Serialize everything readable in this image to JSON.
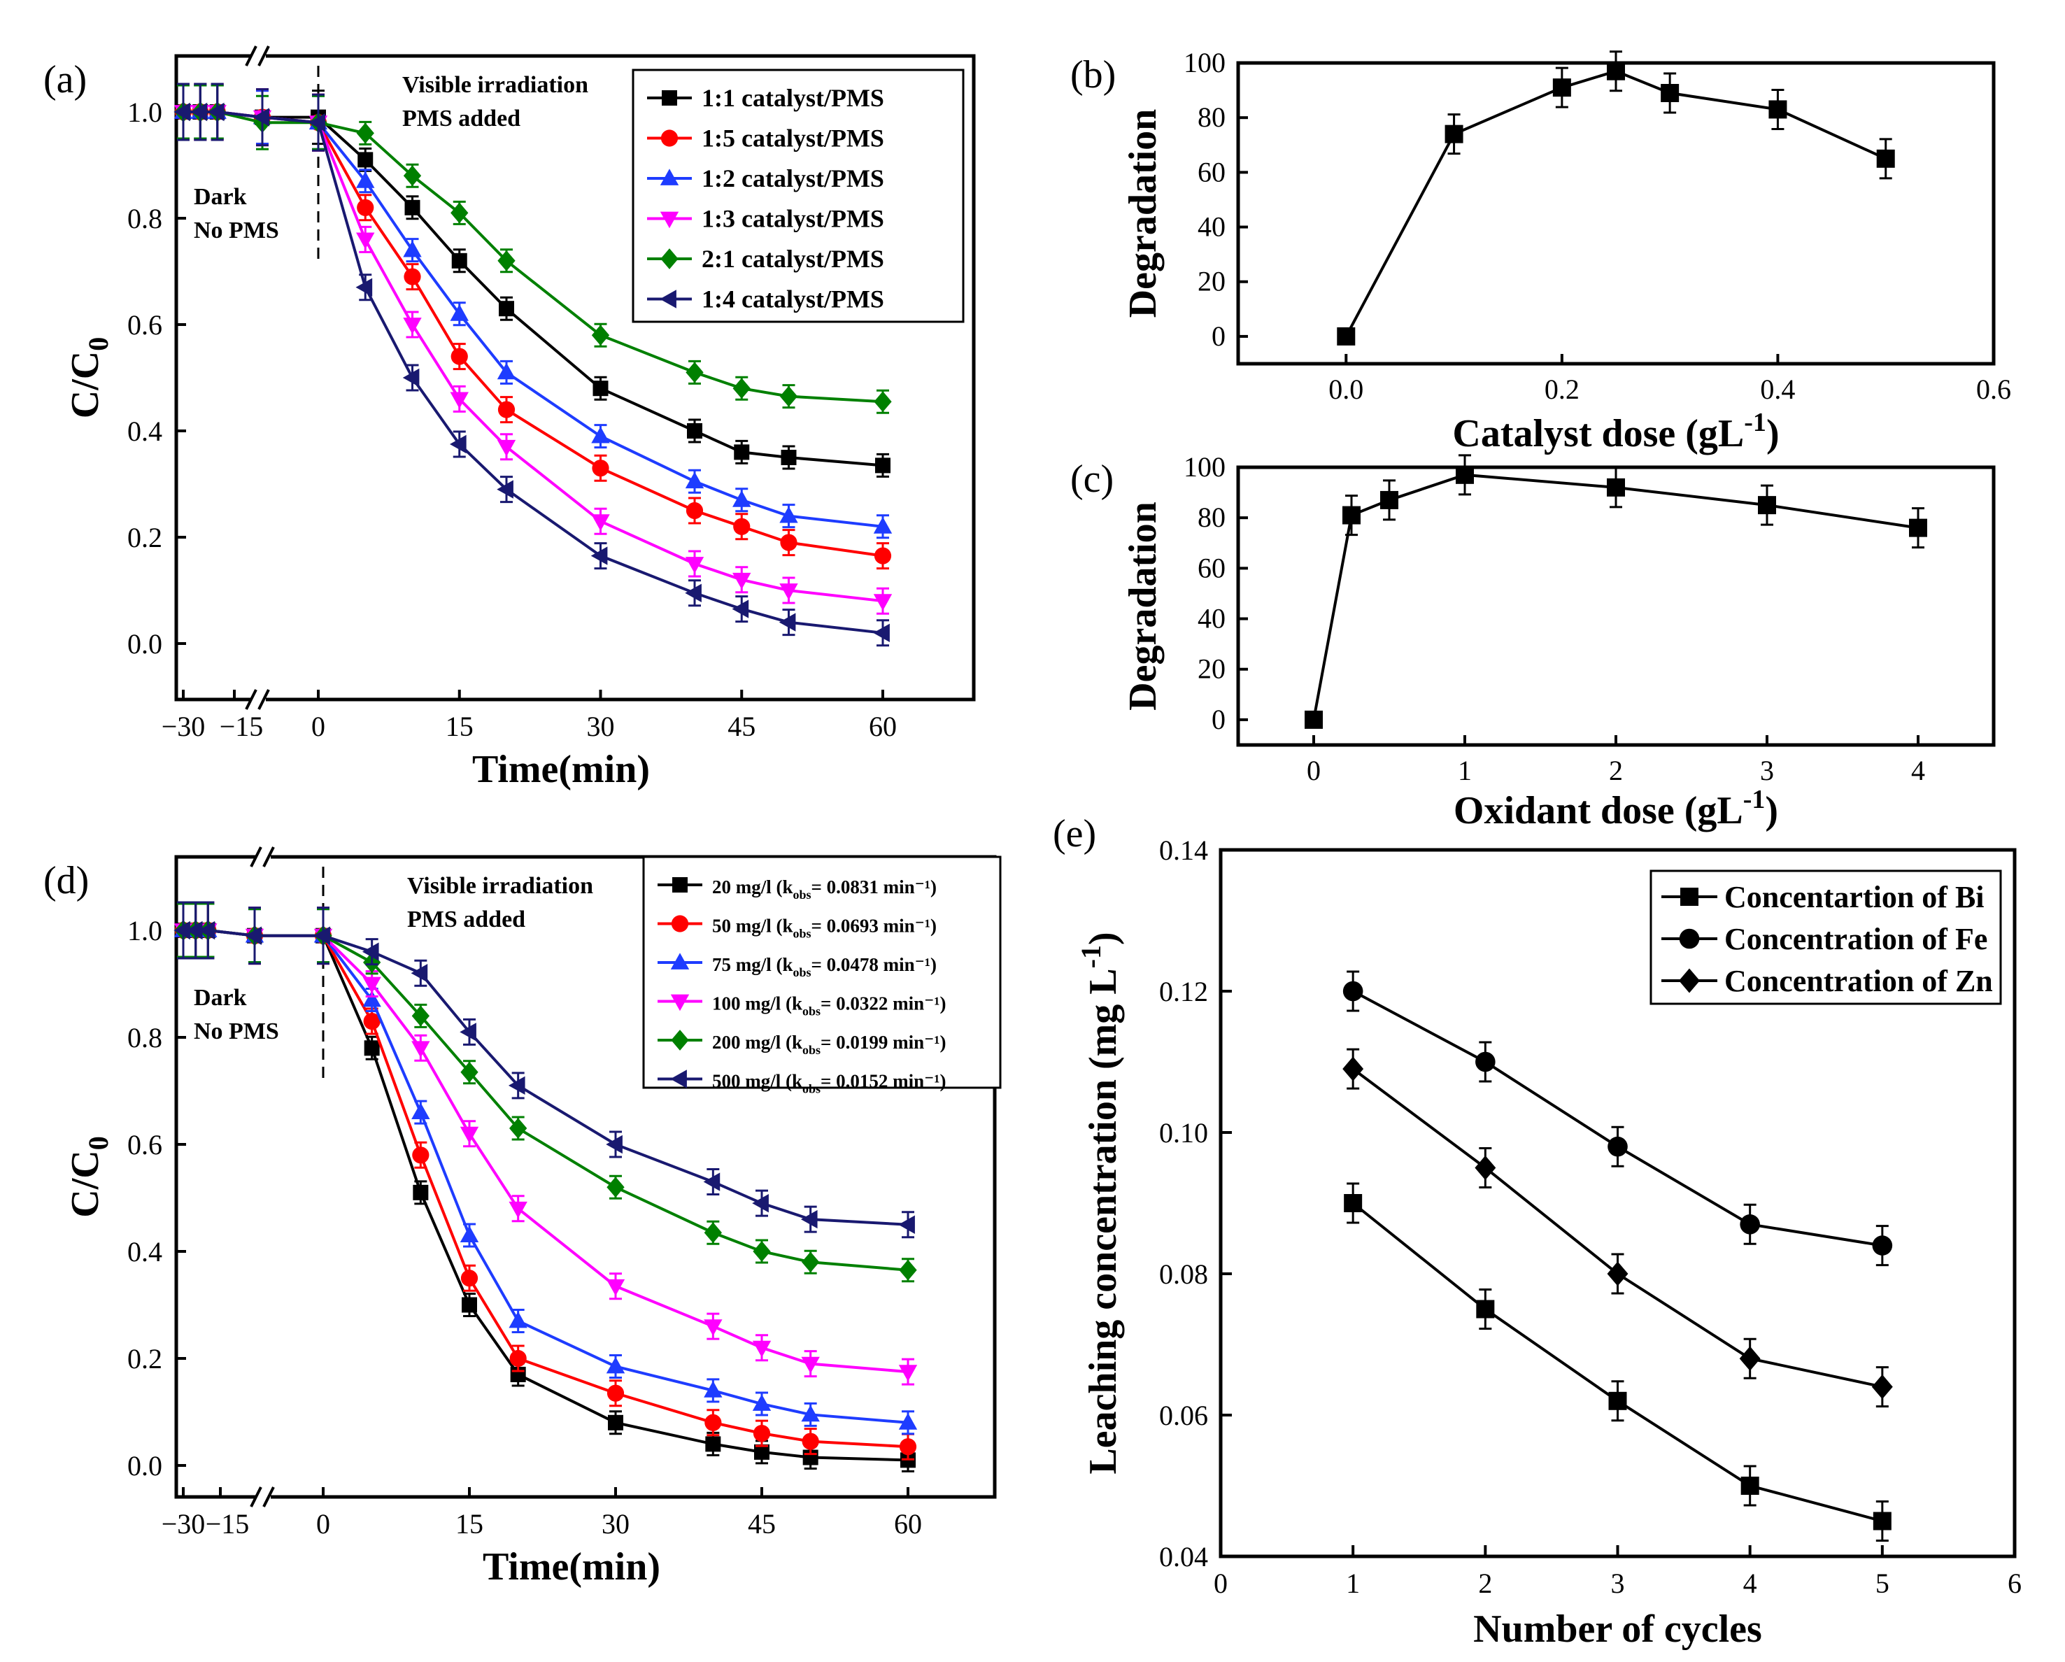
{
  "chart_data": [
    {
      "id": "a",
      "panel_label": "(a)",
      "type": "line",
      "xlabel": "Time(min)",
      "ylabel": "C/C",
      "ylabel_sub": "0",
      "ylim": [
        -0.1,
        1.1
      ],
      "xticks": [
        "-30",
        "-15",
        "0",
        "15",
        "30",
        "45",
        "60"
      ],
      "yticks": [
        "0.0",
        "0.2",
        "0.4",
        "0.6",
        "0.8",
        "1.0"
      ],
      "annotations": [
        "Visible irradiation",
        "PMS added",
        "Dark",
        "No PMS"
      ],
      "x": [
        -30,
        -25,
        -20,
        -10,
        0,
        5,
        10,
        15,
        20,
        30,
        40,
        45,
        50,
        60
      ],
      "series": [
        {
          "name": "1:1 catalyst/PMS",
          "color": "#000000",
          "marker": "square",
          "values": [
            1.0,
            1.0,
            1.0,
            0.99,
            0.99,
            0.91,
            0.82,
            0.72,
            0.63,
            0.48,
            0.4,
            0.36,
            0.35,
            0.335
          ]
        },
        {
          "name": "1:5 catalyst/PMS",
          "color": "#ff0000",
          "marker": "circle",
          "values": [
            1.0,
            1.0,
            1.0,
            0.99,
            0.98,
            0.82,
            0.69,
            0.54,
            0.44,
            0.33,
            0.25,
            0.22,
            0.19,
            0.165
          ]
        },
        {
          "name": "1:2 catalyst/PMS",
          "color": "#1e3cff",
          "marker": "triangle-up",
          "values": [
            1.0,
            1.0,
            1.0,
            0.99,
            0.98,
            0.87,
            0.74,
            0.62,
            0.51,
            0.39,
            0.305,
            0.27,
            0.24,
            0.22
          ]
        },
        {
          "name": "1:3 catalyst/PMS",
          "color": "#ff00ff",
          "marker": "triangle-down",
          "values": [
            1.0,
            1.0,
            1.0,
            0.99,
            0.98,
            0.76,
            0.6,
            0.46,
            0.37,
            0.23,
            0.15,
            0.12,
            0.1,
            0.08
          ]
        },
        {
          "name": "2:1 catalyst/PMS",
          "color": "#008000",
          "marker": "diamond",
          "values": [
            1.0,
            1.0,
            1.0,
            0.98,
            0.98,
            0.96,
            0.88,
            0.81,
            0.72,
            0.58,
            0.51,
            0.48,
            0.465,
            0.455
          ]
        },
        {
          "name": "1:4 catalyst/PMS",
          "color": "#191970",
          "marker": "triangle-left",
          "values": [
            1.0,
            1.0,
            1.0,
            0.99,
            0.98,
            0.67,
            0.5,
            0.375,
            0.29,
            0.165,
            0.095,
            0.065,
            0.04,
            0.02
          ]
        }
      ]
    },
    {
      "id": "b",
      "panel_label": "(b)",
      "type": "line",
      "xlabel": "Catalyst dose (gL",
      "xlabel_sup": "-1",
      "xlabel_end": ")",
      "ylabel": "Degradation",
      "xlim": [
        -0.1,
        0.6
      ],
      "ylim": [
        -10,
        100
      ],
      "xticks": [
        "0.0",
        "0.2",
        "0.4",
        "0.6"
      ],
      "yticks": [
        "0",
        "20",
        "40",
        "60",
        "80",
        "100"
      ],
      "series": [
        {
          "name": "Degradation",
          "color": "#000000",
          "marker": "square",
          "x": [
            0.0,
            0.1,
            0.2,
            0.25,
            0.3,
            0.4,
            0.5
          ],
          "values": [
            0,
            74,
            91,
            97,
            89,
            83,
            65
          ]
        }
      ]
    },
    {
      "id": "c",
      "panel_label": "(c)",
      "type": "line",
      "xlabel": "Oxidant dose (gL",
      "xlabel_sup": "-1",
      "xlabel_end": ")",
      "ylabel": "Degradation",
      "xlim": [
        -0.5,
        4.5
      ],
      "ylim": [
        -10,
        100
      ],
      "xticks": [
        "0",
        "1",
        "2",
        "3",
        "4"
      ],
      "yticks": [
        "0",
        "20",
        "40",
        "60",
        "80",
        "100"
      ],
      "series": [
        {
          "name": "Degradation",
          "color": "#000000",
          "marker": "square",
          "x": [
            0,
            0.25,
            0.5,
            1,
            2,
            3,
            4
          ],
          "values": [
            0,
            81,
            87,
            97,
            92,
            85,
            76
          ]
        }
      ]
    },
    {
      "id": "d",
      "panel_label": "(d)",
      "type": "line",
      "xlabel": "Time(min)",
      "ylabel": "C/C",
      "ylabel_sub": "0",
      "ylim": [
        -0.1,
        1.1
      ],
      "xticks": [
        "-30",
        "-15",
        "0",
        "15",
        "30",
        "45",
        "60"
      ],
      "yticks": [
        "0.0",
        "0.2",
        "0.4",
        "0.6",
        "0.8",
        "1.0"
      ],
      "annotations": [
        "Visible irradiation",
        "PMS added",
        "Dark",
        "No PMS"
      ],
      "x": [
        -30,
        -25,
        -20,
        -10,
        0,
        5,
        10,
        15,
        20,
        30,
        40,
        45,
        50,
        60
      ],
      "series": [
        {
          "name": "20 mg/l (k",
          "name_sub": "obs",
          "name_end": "= 0.0831 min⁻¹)",
          "color": "#000000",
          "marker": "square",
          "values": [
            1.0,
            1.0,
            1.0,
            0.99,
            0.99,
            0.78,
            0.51,
            0.3,
            0.17,
            0.08,
            0.04,
            0.025,
            0.015,
            0.01
          ]
        },
        {
          "name": "50 mg/l (k",
          "name_sub": "obs",
          "name_end": "= 0.0693 min⁻¹)",
          "color": "#ff0000",
          "marker": "circle",
          "values": [
            1.0,
            1.0,
            1.0,
            0.99,
            0.99,
            0.83,
            0.58,
            0.35,
            0.2,
            0.135,
            0.08,
            0.06,
            0.045,
            0.035
          ]
        },
        {
          "name": "75 mg/l  (k",
          "name_sub": "obs",
          "name_end": "= 0.0478 min⁻¹)",
          "color": "#1e3cff",
          "marker": "triangle-up",
          "values": [
            1.0,
            1.0,
            1.0,
            0.99,
            0.99,
            0.87,
            0.66,
            0.43,
            0.27,
            0.185,
            0.14,
            0.115,
            0.095,
            0.08
          ]
        },
        {
          "name": "100 mg/l (k",
          "name_sub": "obs",
          "name_end": "= 0.0322 min⁻¹)",
          "color": "#ff00ff",
          "marker": "triangle-down",
          "values": [
            1.0,
            1.0,
            1.0,
            0.99,
            0.99,
            0.9,
            0.78,
            0.62,
            0.48,
            0.335,
            0.26,
            0.22,
            0.19,
            0.175
          ]
        },
        {
          "name": "200 mg/l (k",
          "name_sub": "obs",
          "name_end": "= 0.0199 min⁻¹)",
          "color": "#008000",
          "marker": "diamond",
          "values": [
            1.0,
            1.0,
            1.0,
            0.99,
            0.99,
            0.94,
            0.84,
            0.735,
            0.63,
            0.52,
            0.435,
            0.4,
            0.38,
            0.365
          ]
        },
        {
          "name": "500 mg/l (k",
          "name_sub": "obs",
          "name_end": "= 0.0152 min⁻¹)",
          "color": "#191970",
          "marker": "triangle-left",
          "values": [
            1.0,
            1.0,
            1.0,
            0.99,
            0.99,
            0.96,
            0.92,
            0.81,
            0.71,
            0.6,
            0.53,
            0.49,
            0.46,
            0.45
          ]
        }
      ]
    },
    {
      "id": "e",
      "panel_label": "(e)",
      "type": "line",
      "xlabel": "Number of cycles",
      "ylabel": "Leaching concentration (mg L",
      "ylabel_sup": "-1",
      "ylabel_end": ")",
      "xlim": [
        0,
        6
      ],
      "ylim": [
        0.04,
        0.14
      ],
      "xticks": [
        "0",
        "1",
        "2",
        "3",
        "4",
        "5",
        "6"
      ],
      "yticks": [
        "0.04",
        "0.06",
        "0.08",
        "0.10",
        "0.12",
        "0.14"
      ],
      "x": [
        1,
        2,
        3,
        4,
        5
      ],
      "series": [
        {
          "name": "Concentartion of Bi",
          "color": "#000000",
          "marker": "square",
          "values": [
            0.09,
            0.075,
            0.062,
            0.05,
            0.045
          ]
        },
        {
          "name": "Concentration of Fe",
          "color": "#000000",
          "marker": "circle",
          "values": [
            0.12,
            0.11,
            0.098,
            0.087,
            0.084
          ]
        },
        {
          "name": "Concentration of Zn",
          "color": "#000000",
          "marker": "diamond",
          "values": [
            0.109,
            0.095,
            0.08,
            0.068,
            0.064
          ]
        }
      ]
    }
  ]
}
